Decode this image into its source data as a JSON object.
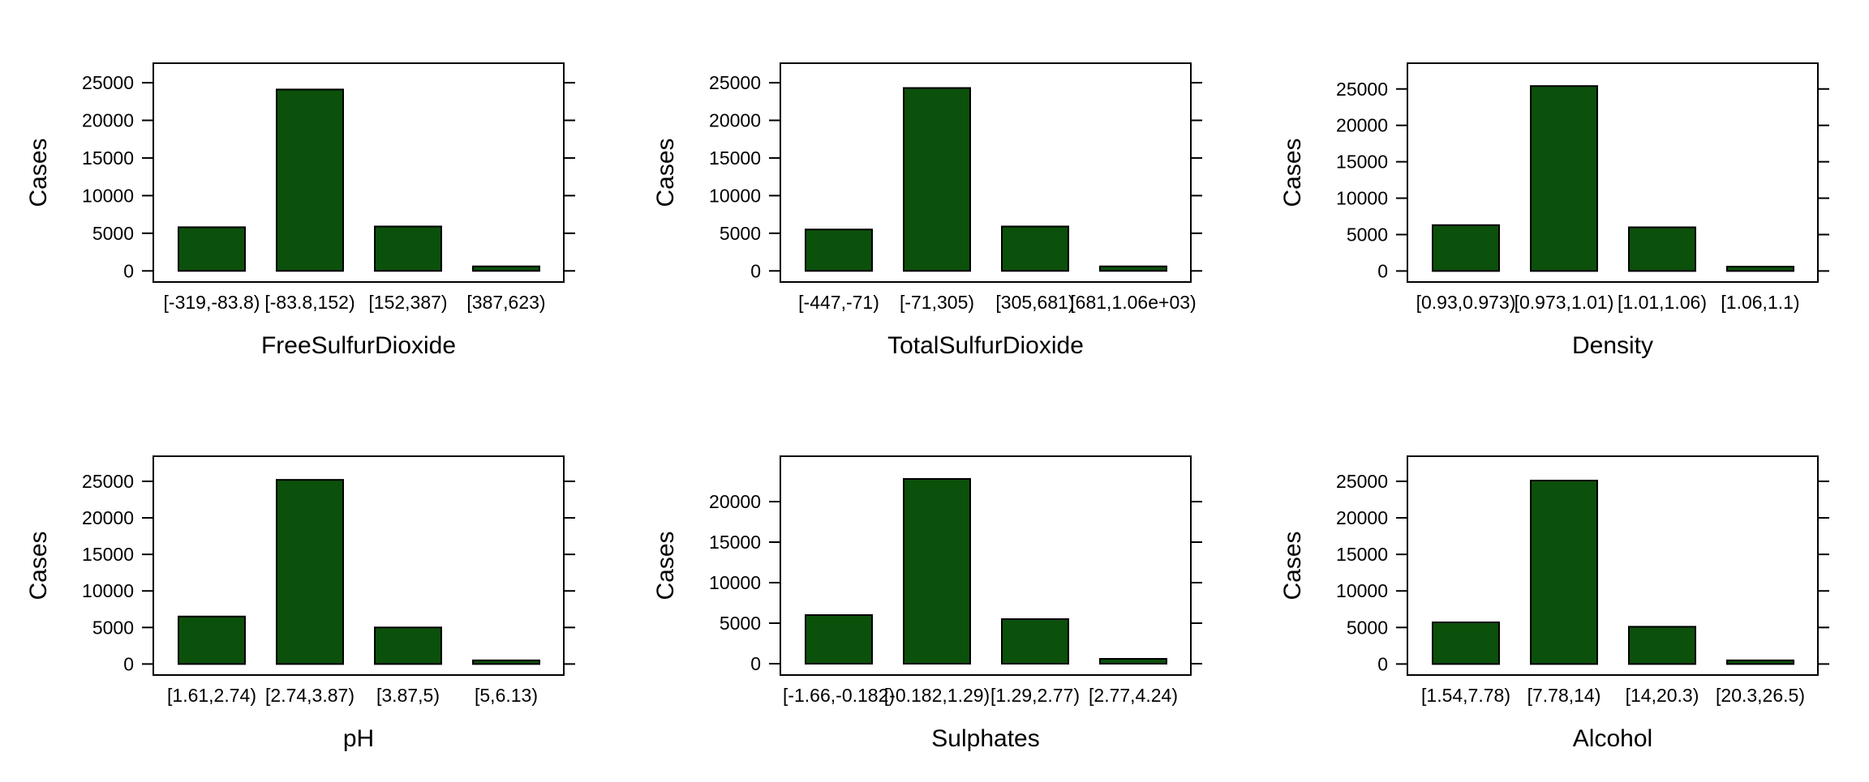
{
  "colors": {
    "bar_fill": "#0b500b",
    "bar_stroke": "#000000",
    "frame": "#000000",
    "background": "#ffffff"
  },
  "chart_data": [
    {
      "type": "bar",
      "xlabel": "FreeSulfurDioxide",
      "ylabel": "Cases",
      "categories": [
        "[-319,-83.8)",
        "[-83.8,152)",
        "[152,387)",
        "[387,623)"
      ],
      "values": [
        5800,
        24100,
        5900,
        600
      ],
      "yticks": [
        0,
        5000,
        10000,
        15000,
        20000,
        25000
      ],
      "ylim": [
        -400,
        26300
      ]
    },
    {
      "type": "bar",
      "xlabel": "TotalSulfurDioxide",
      "ylabel": "Cases",
      "categories": [
        "[-447,-71)",
        "[-71,305)",
        "[305,681)",
        "[681,1.06e+03)"
      ],
      "values": [
        5500,
        24300,
        5900,
        600
      ],
      "yticks": [
        0,
        5000,
        10000,
        15000,
        20000,
        25000
      ],
      "ylim": [
        -400,
        26300
      ]
    },
    {
      "type": "bar",
      "xlabel": "Density",
      "ylabel": "Cases",
      "categories": [
        "[0.93,0.973)",
        "[0.973,1.01)",
        "[1.01,1.06)",
        "[1.06,1.1)"
      ],
      "values": [
        6300,
        25400,
        6000,
        600
      ],
      "yticks": [
        0,
        5000,
        10000,
        15000,
        20000,
        25000
      ],
      "ylim": [
        -400,
        27200
      ]
    },
    {
      "type": "bar",
      "xlabel": "pH",
      "ylabel": "Cases",
      "categories": [
        "[1.61,2.74)",
        "[2.74,3.87)",
        "[3.87,5)",
        "[5,6.13)"
      ],
      "values": [
        6500,
        25200,
        5000,
        500
      ],
      "yticks": [
        0,
        5000,
        10000,
        15000,
        20000,
        25000
      ],
      "ylim": [
        -400,
        27100
      ]
    },
    {
      "type": "bar",
      "xlabel": "Sulphates",
      "ylabel": "Cases",
      "categories": [
        "[-1.66,-0.182)",
        "[-0.182,1.29)",
        "[1.29,2.77)",
        "[2.77,4.24)"
      ],
      "values": [
        6000,
        22800,
        5500,
        600
      ],
      "yticks": [
        0,
        5000,
        10000,
        15000,
        20000
      ],
      "ylim": [
        -400,
        24400
      ]
    },
    {
      "type": "bar",
      "xlabel": "Alcohol",
      "ylabel": "Cases",
      "categories": [
        "[1.54,7.78)",
        "[7.78,14)",
        "[14,20.3)",
        "[20.3,26.5)"
      ],
      "values": [
        5700,
        25100,
        5100,
        500
      ],
      "yticks": [
        0,
        5000,
        10000,
        15000,
        20000,
        25000
      ],
      "ylim": [
        -400,
        27100
      ]
    }
  ]
}
